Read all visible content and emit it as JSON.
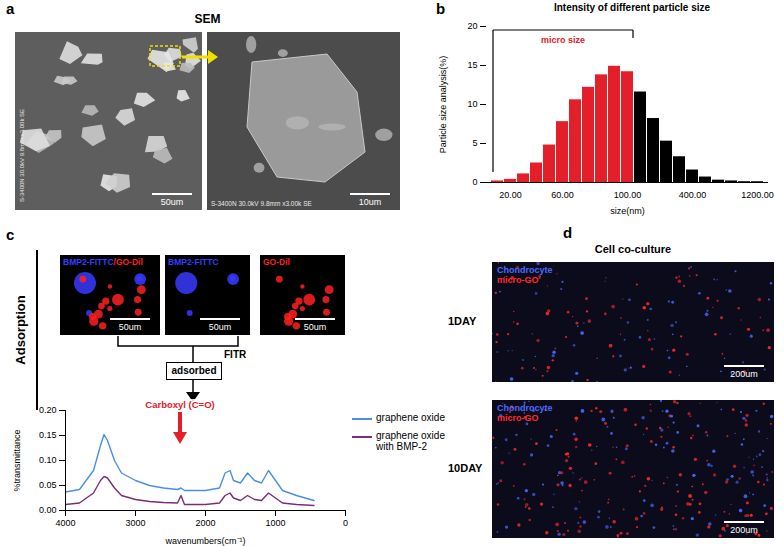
{
  "figure": {
    "panel_a": {
      "label": "a",
      "title": "SEM",
      "images": [
        {
          "info": "S-3400N 30.0kV 9.8mm x3.00k SE",
          "scale_bar": "50um"
        },
        {
          "info": "S-3400N 30.0kV 9.8mm x3.00k SE",
          "scale_bar": "10um"
        }
      ]
    },
    "panel_b": {
      "label": "b"
    },
    "panel_c": {
      "label": "c",
      "side_label": "Adsorption",
      "connector": "FITR",
      "box": "adsorbed",
      "images": [
        {
          "channels": [
            {
              "text": "BMP2-FITTC",
              "color": "#3a3aff"
            },
            {
              "text": "/GO-Dil",
              "color": "#ff2020"
            }
          ],
          "scale_bar": "50um"
        },
        {
          "channels": [
            {
              "text": "BMP2-FITTC",
              "color": "#3a3aff"
            }
          ],
          "scale_bar": "50um"
        },
        {
          "channels": [
            {
              "text": "GO-Dil",
              "color": "#ff2020"
            }
          ],
          "scale_bar": "50um"
        }
      ]
    },
    "panel_d": {
      "label": "d",
      "title": "Cell co-culture",
      "legend": [
        {
          "text": "Chondrocyte",
          "color": "#4a6bff"
        },
        {
          "text": "micro-GO",
          "color": "#ff2a2a"
        }
      ],
      "images": [
        {
          "label": "1DAY",
          "scale_bar": "200um"
        },
        {
          "label": "10DAY",
          "scale_bar": "200um"
        }
      ]
    }
  },
  "chart_data": [
    {
      "type": "bar",
      "title": "Intensity of different particle size",
      "x_label": "size(nm)",
      "y_label": "Particle size analysis(%)",
      "categories": [
        null,
        "20.00",
        null,
        null,
        null,
        "60.00",
        null,
        null,
        null,
        null,
        "100.00",
        null,
        null,
        null,
        null,
        "400.00",
        null,
        null,
        null,
        null,
        "1200.00"
      ],
      "values": [
        0.2,
        0.4,
        1.1,
        2.5,
        4.8,
        7.8,
        10.6,
        12.2,
        13.8,
        14.9,
        14.2,
        11.6,
        8.2,
        5.3,
        3.3,
        1.6,
        0.7,
        0.3,
        0.2,
        0.1,
        0.1
      ],
      "colors": [
        "#e3202a",
        "#e3202a",
        "#e3202a",
        "#e3202a",
        "#e3202a",
        "#e3202a",
        "#e3202a",
        "#e3202a",
        "#e3202a",
        "#e3202a",
        "#e3202a",
        "#000000",
        "#000000",
        "#000000",
        "#000000",
        "#000000",
        "#000000",
        "#000000",
        "#000000",
        "#000000",
        "#000000"
      ],
      "ylim": [
        0,
        20
      ],
      "yticks": [
        0,
        5,
        10,
        15,
        20
      ],
      "annotations": [
        {
          "text": "micro size",
          "color": "#e3202a"
        }
      ]
    },
    {
      "type": "line",
      "x_label": "wavenumbers(cm⁻¹)",
      "y_label": "%transmittance",
      "x": [
        4000,
        3800,
        3600,
        3500,
        3450,
        3400,
        3300,
        3200,
        3000,
        2800,
        2600,
        2400,
        2350,
        2300,
        2000,
        1800,
        1720,
        1650,
        1600,
        1500,
        1400,
        1300,
        1200,
        1100,
        1050,
        900,
        700,
        450
      ],
      "series": [
        {
          "name": "graphene oxide",
          "color": "#4a90e2",
          "values": [
            0.037,
            0.042,
            0.08,
            0.13,
            0.152,
            0.14,
            0.1,
            0.075,
            0.06,
            0.05,
            0.045,
            0.042,
            0.045,
            0.04,
            0.04,
            0.045,
            0.075,
            0.08,
            0.06,
            0.055,
            0.075,
            0.06,
            0.055,
            0.08,
            0.07,
            0.04,
            0.03,
            0.02
          ]
        },
        {
          "name": "graphene oxide with BMP-2",
          "color": "#7b2d7b",
          "values": [
            0.012,
            0.015,
            0.035,
            0.06,
            0.068,
            0.065,
            0.045,
            0.03,
            0.022,
            0.018,
            0.016,
            0.015,
            0.03,
            0.012,
            0.012,
            0.015,
            0.03,
            0.035,
            0.025,
            0.02,
            0.03,
            0.022,
            0.02,
            0.035,
            0.03,
            0.015,
            0.012,
            0.01
          ]
        }
      ],
      "xlim": [
        4000,
        0
      ],
      "xticks": [
        4000,
        3000,
        2000,
        1000,
        0
      ],
      "ylim": [
        0,
        0.2
      ],
      "yticks": [
        {
          "value": 0,
          "label": "0.00"
        },
        {
          "value": 0.05,
          "label": "0.05"
        },
        {
          "value": 0.1,
          "label": "0.10"
        },
        {
          "value": 0.15,
          "label": "0.15"
        },
        {
          "value": 0.2,
          "label": "0.20"
        }
      ],
      "legend": "right",
      "annotations": [
        {
          "text": "Carboxyl (C=O)",
          "color": "#e3202a"
        }
      ]
    }
  ]
}
